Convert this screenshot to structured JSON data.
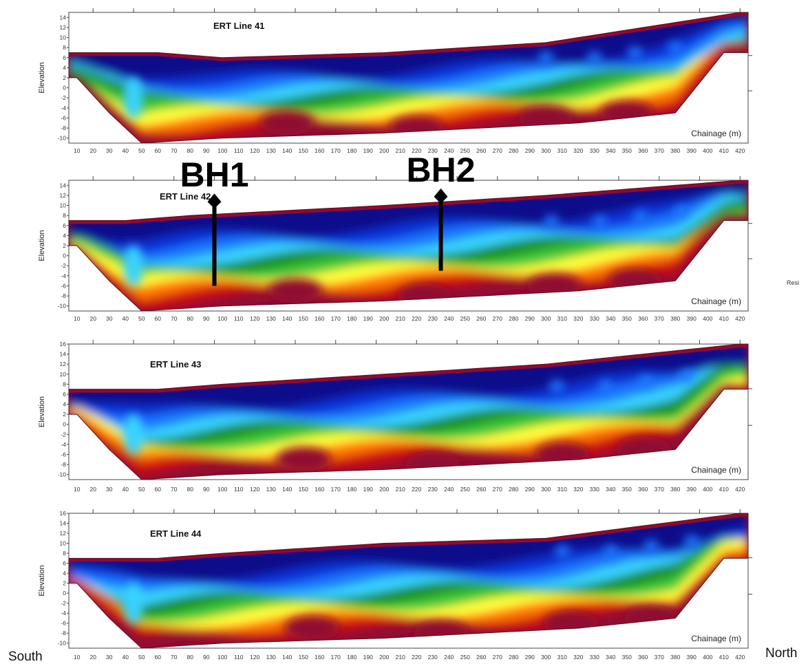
{
  "direction": {
    "left": "South",
    "right": "North"
  },
  "side_label": "Resi",
  "colors": {
    "resistivity_scale": [
      "#0a0a8c",
      "#1030d8",
      "#1e78ff",
      "#38d2ff",
      "#22b48c",
      "#1a8c1a",
      "#3cc83c",
      "#a8e628",
      "#ffff3c",
      "#ffc800",
      "#ff7a00",
      "#ff2a00",
      "#cc0c10",
      "#900a32"
    ]
  },
  "chart_data": [
    {
      "type": "heatmap",
      "title": "ERT Line 41",
      "ylabel": "Elevation",
      "xlabel": "Chainage (m)",
      "x_ticks": [
        10,
        20,
        30,
        40,
        50,
        60,
        70,
        80,
        90,
        100,
        110,
        120,
        130,
        140,
        150,
        160,
        170,
        180,
        190,
        200,
        210,
        220,
        230,
        240,
        250,
        260,
        270,
        280,
        290,
        300,
        310,
        320,
        330,
        340,
        350,
        360,
        370,
        380,
        390,
        400,
        410,
        420
      ],
      "y_ticks": [
        14,
        12,
        10,
        8,
        6,
        4,
        2,
        0,
        -2,
        -4,
        -6,
        -8,
        -10
      ],
      "ylim": [
        -11,
        15
      ],
      "xlim": [
        5,
        425
      ],
      "surface_elevation": [
        [
          5,
          7
        ],
        [
          60,
          7
        ],
        [
          100,
          6
        ],
        [
          200,
          7
        ],
        [
          300,
          9
        ],
        [
          420,
          15
        ]
      ],
      "base_elevation": [
        [
          10,
          2
        ],
        [
          30,
          -5
        ],
        [
          50,
          -11
        ],
        [
          100,
          -10
        ],
        [
          200,
          -9
        ],
        [
          320,
          -7
        ],
        [
          380,
          -5
        ],
        [
          410,
          7
        ]
      ]
    },
    {
      "type": "heatmap",
      "title": "ERT Line 42",
      "ylabel": "Elevation",
      "xlabel": "Chainage (m)",
      "x_ticks": [
        10,
        20,
        30,
        40,
        50,
        60,
        70,
        80,
        90,
        100,
        110,
        120,
        130,
        140,
        150,
        160,
        170,
        180,
        190,
        200,
        210,
        220,
        230,
        240,
        250,
        260,
        270,
        280,
        290,
        300,
        310,
        320,
        330,
        340,
        350,
        360,
        370,
        380,
        390,
        400,
        410,
        420
      ],
      "y_ticks": [
        14,
        12,
        10,
        8,
        6,
        4,
        2,
        0,
        -2,
        -4,
        -6,
        -8,
        -10
      ],
      "ylim": [
        -11,
        15
      ],
      "xlim": [
        5,
        425
      ],
      "surface_elevation": [
        [
          5,
          7
        ],
        [
          40,
          7
        ],
        [
          80,
          8
        ],
        [
          200,
          10
        ],
        [
          300,
          12
        ],
        [
          420,
          15
        ]
      ],
      "base_elevation": [
        [
          10,
          2
        ],
        [
          30,
          -5
        ],
        [
          50,
          -11
        ],
        [
          100,
          -10
        ],
        [
          200,
          -9
        ],
        [
          320,
          -7
        ],
        [
          380,
          -5
        ],
        [
          410,
          7
        ]
      ],
      "boreholes": [
        {
          "label": "BH1",
          "chainage": 95,
          "top": 11,
          "bottom": -6
        },
        {
          "label": "BH2",
          "chainage": 235,
          "top": 12,
          "bottom": -3
        }
      ]
    },
    {
      "type": "heatmap",
      "title": "ERT Line 43",
      "ylabel": "Elevation",
      "xlabel": "Chainage (m)",
      "x_ticks": [
        10,
        20,
        30,
        40,
        50,
        60,
        70,
        80,
        90,
        100,
        110,
        120,
        130,
        140,
        150,
        160,
        170,
        180,
        190,
        200,
        210,
        220,
        230,
        240,
        250,
        260,
        270,
        280,
        290,
        300,
        310,
        320,
        330,
        340,
        350,
        360,
        370,
        380,
        390,
        400,
        410,
        420
      ],
      "y_ticks": [
        16,
        14,
        12,
        10,
        8,
        6,
        4,
        2,
        0,
        -2,
        -4,
        -6,
        -8,
        -10
      ],
      "ylim": [
        -11,
        16
      ],
      "xlim": [
        5,
        425
      ],
      "surface_elevation": [
        [
          5,
          7
        ],
        [
          60,
          7
        ],
        [
          100,
          8
        ],
        [
          200,
          10
        ],
        [
          300,
          12
        ],
        [
          420,
          16
        ]
      ],
      "base_elevation": [
        [
          10,
          2
        ],
        [
          30,
          -5
        ],
        [
          50,
          -11
        ],
        [
          100,
          -10
        ],
        [
          200,
          -9
        ],
        [
          320,
          -7
        ],
        [
          380,
          -5
        ],
        [
          410,
          7
        ]
      ]
    },
    {
      "type": "heatmap",
      "title": "ERT Line 44",
      "ylabel": "Elevation",
      "xlabel": "Chainage (m)",
      "x_ticks": [
        10,
        20,
        30,
        40,
        50,
        60,
        70,
        80,
        90,
        100,
        110,
        120,
        130,
        140,
        150,
        160,
        170,
        180,
        190,
        200,
        210,
        220,
        230,
        240,
        250,
        260,
        270,
        280,
        290,
        300,
        310,
        320,
        330,
        340,
        350,
        360,
        370,
        380,
        390,
        400,
        410,
        420
      ],
      "y_ticks": [
        16,
        14,
        12,
        10,
        8,
        6,
        4,
        2,
        0,
        -2,
        -4,
        -6,
        -8,
        -10
      ],
      "ylim": [
        -11,
        16
      ],
      "xlim": [
        5,
        425
      ],
      "surface_elevation": [
        [
          5,
          7
        ],
        [
          60,
          7
        ],
        [
          100,
          8
        ],
        [
          200,
          10
        ],
        [
          300,
          11
        ],
        [
          420,
          16
        ]
      ],
      "base_elevation": [
        [
          10,
          2
        ],
        [
          30,
          -5
        ],
        [
          50,
          -11
        ],
        [
          100,
          -10
        ],
        [
          200,
          -9
        ],
        [
          320,
          -7
        ],
        [
          380,
          -5
        ],
        [
          410,
          7
        ]
      ]
    }
  ]
}
